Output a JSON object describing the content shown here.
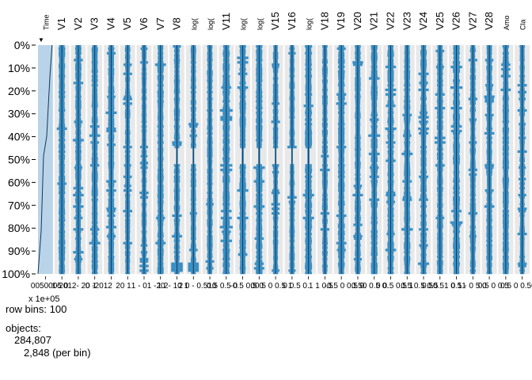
{
  "chart_data": {
    "type": "tableplot",
    "title": "",
    "columns": [
      "Time",
      "V1",
      "V2",
      "V3",
      "V4",
      "V5",
      "V6",
      "V7",
      "V8",
      "log(",
      "log(",
      "V11",
      "log(",
      "log(",
      "V15",
      "V16",
      "log(",
      "V18",
      "V19",
      "V20",
      "V21",
      "V22",
      "V23",
      "V24",
      "V25",
      "V26",
      "V27",
      "V28",
      "Amo",
      "Cla"
    ],
    "y_ticks": [
      "0%",
      "10%",
      "20%",
      "30%",
      "40%",
      "50%",
      "60%",
      "70%",
      "80%",
      "90%",
      "100%"
    ],
    "x_tick_text": [
      "0050005 0",
      "1-2012- 20 1",
      "0 -2012",
      "20 1",
      "1 - 01 -20",
      "1 2- 10 1",
      "2 0 - 0.510",
      "0.5 0.5 0",
      "-0.5 0.5 0",
      "00 5 0 0.5 1",
      "0 0.5 0.",
      "1 1 0.5",
      "-0.5 0 0.5 0.",
      "0.50 0.5 0.",
      "0 0.5 0.5 1",
      "0.5 0.5 0.5",
      "0.50.51 0.51",
      "0 1 - 0 5 0",
      "0.5 0 0.5",
      "0.5 0 0.50"
    ],
    "x_scale_note": "x 1e+05",
    "sort_indicator": "▼",
    "sorted_column": "Time",
    "row_bins": "row bins: 100",
    "objects_label": "objects:",
    "objects_total": "284,807",
    "objects_per_bin": "2,848 (per bin)",
    "colors": {
      "bar": "#3a8fc3",
      "bar_light": "#b9d4e8",
      "band": "#e8e8e8",
      "mean_line": "#13385a"
    }
  }
}
